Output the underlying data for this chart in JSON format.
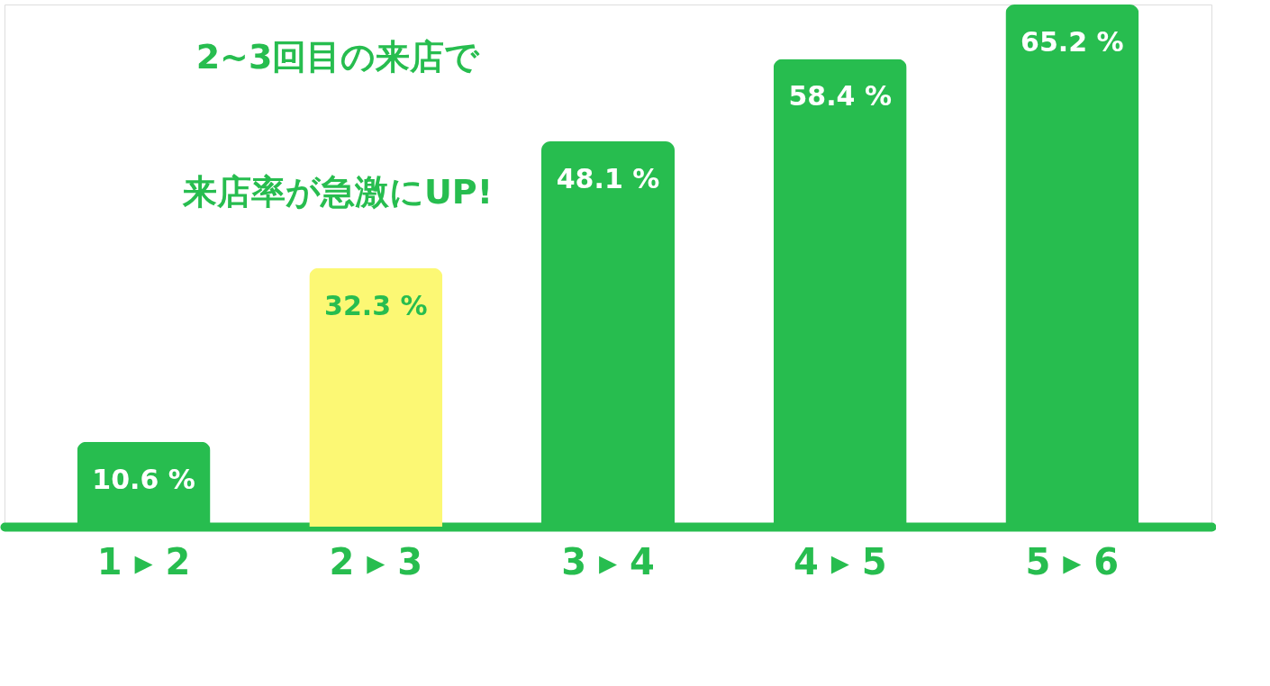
{
  "chart_data": {
    "type": "bar",
    "categories": [
      "1 ▸ 2",
      "2 ▸ 3",
      "3 ▸ 4",
      "4 ▸ 5",
      "5 ▸ 6"
    ],
    "values": [
      10.6,
      32.3,
      48.1,
      58.4,
      65.2
    ],
    "colors": [
      "#27bd4f",
      "#fcf874",
      "#27bd4f",
      "#27bd4f",
      "#27bd4f"
    ],
    "value_labels": [
      "10.6 %",
      "32.3 %",
      "48.1 %",
      "58.4 %",
      "65.2 %"
    ],
    "annotations": [
      "2~3回目の来店で",
      "来店率が急激にUP!"
    ],
    "grid": false
  }
}
